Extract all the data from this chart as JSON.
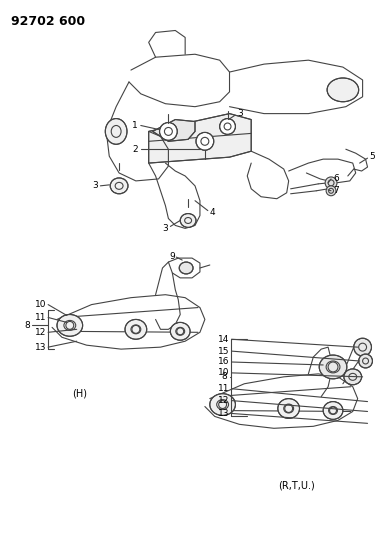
{
  "title": "92702 600",
  "bg_color": "#ffffff",
  "line_color": "#000000",
  "fig_width": 3.92,
  "fig_height": 5.33,
  "dpi": 100,
  "gray": "#444444",
  "light_gray": "#888888",
  "label_fontsize": 6.5,
  "title_fontsize": 9
}
